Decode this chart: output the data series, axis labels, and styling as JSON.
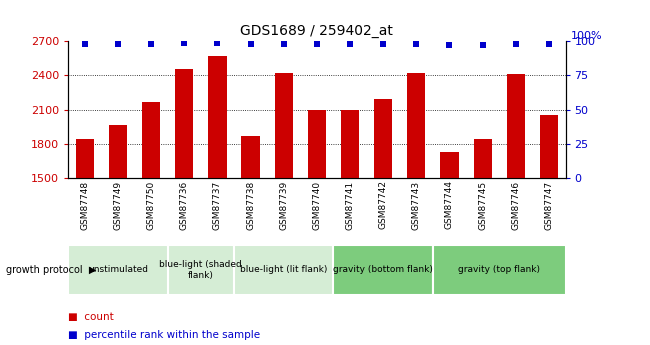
{
  "title": "GDS1689 / 259402_at",
  "samples": [
    "GSM87748",
    "GSM87749",
    "GSM87750",
    "GSM87736",
    "GSM87737",
    "GSM87738",
    "GSM87739",
    "GSM87740",
    "GSM87741",
    "GSM87742",
    "GSM87743",
    "GSM87744",
    "GSM87745",
    "GSM87746",
    "GSM87747"
  ],
  "counts": [
    1840,
    1960,
    2170,
    2460,
    2570,
    1870,
    2420,
    2100,
    2100,
    2190,
    2420,
    1730,
    1840,
    2410,
    2050
  ],
  "percentile_ranks": [
    98,
    98,
    98,
    99,
    99,
    98,
    98,
    98,
    98,
    98,
    98,
    97,
    97,
    98,
    98
  ],
  "ylim_left": [
    1500,
    2700
  ],
  "ylim_right": [
    0,
    100
  ],
  "yticks_left": [
    1500,
    1800,
    2100,
    2400,
    2700
  ],
  "yticks_right": [
    0,
    25,
    50,
    75,
    100
  ],
  "bar_color": "#cc0000",
  "dot_color": "#0000cc",
  "bar_width": 0.55,
  "groups": [
    {
      "label": "unstimulated",
      "start": 0,
      "end": 3,
      "color": "#d5edd5"
    },
    {
      "label": "blue-light (shaded\nflank)",
      "start": 3,
      "end": 5,
      "color": "#d5edd5"
    },
    {
      "label": "blue-light (lit flank)",
      "start": 5,
      "end": 8,
      "color": "#d5edd5"
    },
    {
      "label": "gravity (bottom flank)",
      "start": 8,
      "end": 11,
      "color": "#7dcc7d"
    },
    {
      "label": "gravity (top flank)",
      "start": 11,
      "end": 15,
      "color": "#7dcc7d"
    }
  ],
  "sample_bg_color": "#cccccc",
  "grid_color": "#000000",
  "tick_color_left": "#cc0000",
  "tick_color_right": "#0000cc",
  "legend_count_label": "count",
  "legend_pct_label": "percentile rank within the sample",
  "growth_protocol_label": "growth protocol",
  "right_axis_top_label": "100%"
}
